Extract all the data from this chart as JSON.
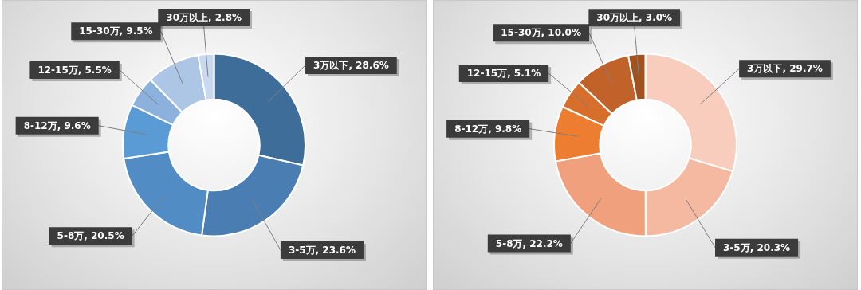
{
  "chart_data": [
    {
      "type": "donut",
      "categories": [
        "3万以下",
        "3-5万",
        "5-8万",
        "8-12万",
        "12-15万",
        "15-30万",
        "30万以上"
      ],
      "values": [
        28.6,
        23.6,
        20.5,
        9.6,
        5.5,
        9.5,
        2.8
      ],
      "value_labels": [
        "28.6%",
        "23.6%",
        "20.5%",
        "9.6%",
        "5.5%",
        "9.5%",
        "2.8%"
      ],
      "colors": [
        "#3e6d9a",
        "#4a7eb2",
        "#528cc4",
        "#5b9bd5",
        "#8db1dd",
        "#adc6e6",
        "#c8d8ee"
      ]
    },
    {
      "type": "donut",
      "categories": [
        "3万以下",
        "3-5万",
        "5-8万",
        "8-12万",
        "12-15万",
        "15-30万",
        "30万以上"
      ],
      "values": [
        29.7,
        20.3,
        22.2,
        9.8,
        5.1,
        10.0,
        3.0
      ],
      "value_labels": [
        "29.7%",
        "20.3%",
        "22.2%",
        "9.8%",
        "5.1%",
        "10.0%",
        "3.0%"
      ],
      "colors": [
        "#f8cdbd",
        "#f5b8a0",
        "#f0a07c",
        "#ed7d31",
        "#d86e2b",
        "#c0622a",
        "#a0521f"
      ]
    }
  ]
}
